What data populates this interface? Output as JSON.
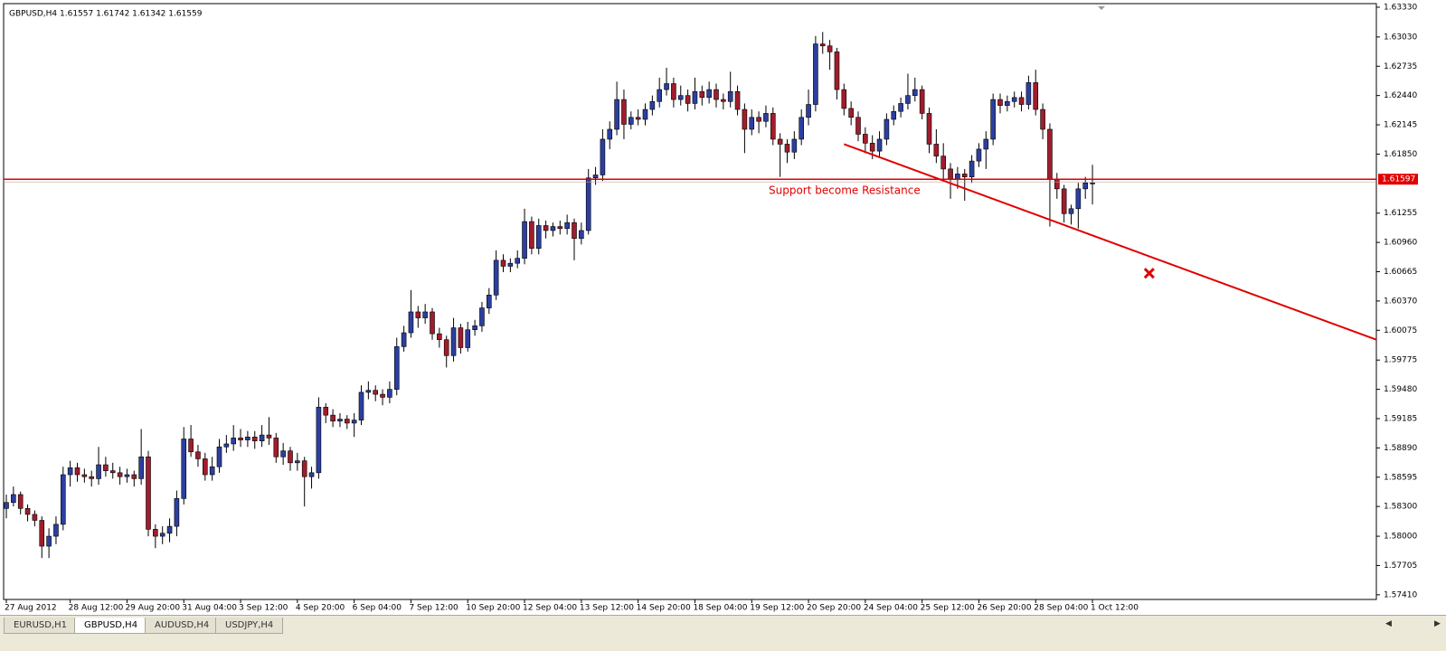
{
  "chart_data": {
    "type": "candlestick",
    "title": "GBPUSD,H4  1.61557 1.61742 1.61342 1.61559",
    "up_color": "#2c3fa0",
    "down_color": "#a11c2c",
    "ylim": [
      1.57363,
      1.63366
    ],
    "yticks": [
      {
        "value": 1.6333,
        "label": "1.63330"
      },
      {
        "value": 1.6303,
        "label": "1.63030"
      },
      {
        "value": 1.62735,
        "label": "1.62735"
      },
      {
        "value": 1.6244,
        "label": "1.62440"
      },
      {
        "value": 1.62145,
        "label": "1.62145"
      },
      {
        "value": 1.6185,
        "label": "1.61850"
      },
      {
        "value": 1.61255,
        "label": "1.61255"
      },
      {
        "value": 1.6096,
        "label": "1.60960"
      },
      {
        "value": 1.60665,
        "label": "1.60665"
      },
      {
        "value": 1.6037,
        "label": "1.60370"
      },
      {
        "value": 1.60075,
        "label": "1.60075"
      },
      {
        "value": 1.59775,
        "label": "1.59775"
      },
      {
        "value": 1.5948,
        "label": "1.59480"
      },
      {
        "value": 1.59185,
        "label": "1.59185"
      },
      {
        "value": 1.5889,
        "label": "1.58890"
      },
      {
        "value": 1.58595,
        "label": "1.58595"
      },
      {
        "value": 1.583,
        "label": "1.58300"
      },
      {
        "value": 1.58,
        "label": "1.58000"
      },
      {
        "value": 1.57705,
        "label": "1.57705"
      },
      {
        "value": 1.5741,
        "label": "1.57410"
      }
    ],
    "hline": {
      "value": 1.61597,
      "label": "1.61597",
      "color": "#e00000"
    },
    "annotation": "Support become Resistance",
    "trendline": {
      "x": [
        118,
        193
      ],
      "y": [
        1.6195,
        1.5998
      ],
      "color": "#e00000"
    },
    "marker": {
      "x": 161,
      "y": 1.6065,
      "color": "#e00000"
    },
    "categories": [
      "27 Aug 2012",
      null,
      null,
      null,
      null,
      null,
      null,
      null,
      null,
      "28 Aug 12:00",
      null,
      null,
      null,
      null,
      null,
      null,
      null,
      "29 Aug 20:00",
      null,
      null,
      null,
      null,
      null,
      null,
      null,
      "31 Aug 04:00",
      null,
      null,
      null,
      null,
      null,
      null,
      null,
      "3 Sep 12:00",
      null,
      null,
      null,
      null,
      null,
      null,
      null,
      "4 Sep 20:00",
      null,
      null,
      null,
      null,
      null,
      null,
      null,
      "6 Sep 04:00",
      null,
      null,
      null,
      null,
      null,
      null,
      null,
      "7 Sep 12:00",
      null,
      null,
      null,
      null,
      null,
      null,
      null,
      "10 Sep 20:00",
      null,
      null,
      null,
      null,
      null,
      null,
      null,
      "12 Sep 04:00",
      null,
      null,
      null,
      null,
      null,
      null,
      null,
      "13 Sep 12:00",
      null,
      null,
      null,
      null,
      null,
      null,
      null,
      "14 Sep 20:00",
      null,
      null,
      null,
      null,
      null,
      null,
      null,
      "18 Sep 04:00",
      null,
      null,
      null,
      null,
      null,
      null,
      null,
      "19 Sep 12:00",
      null,
      null,
      null,
      null,
      null,
      null,
      null,
      "20 Sep 20:00",
      null,
      null,
      null,
      null,
      null,
      null,
      null,
      "24 Sep 04:00",
      null,
      null,
      null,
      null,
      null,
      null,
      null,
      "25 Sep 12:00",
      null,
      null,
      null,
      null,
      null,
      null,
      null,
      "26 Sep 20:00",
      null,
      null,
      null,
      null,
      null,
      null,
      null,
      "28 Sep 04:00",
      null,
      null,
      null,
      null,
      null,
      null,
      null,
      "1 Oct 12:00"
    ],
    "ohlc": [
      [
        1.5828,
        1.5842,
        1.5818,
        1.5834
      ],
      [
        1.5834,
        1.585,
        1.583,
        1.5842
      ],
      [
        1.5842,
        1.5845,
        1.5822,
        1.5828
      ],
      [
        1.5828,
        1.5832,
        1.5815,
        1.5822
      ],
      [
        1.5822,
        1.5826,
        1.581,
        1.5816
      ],
      [
        1.5816,
        1.582,
        1.5778,
        1.579
      ],
      [
        1.579,
        1.5808,
        1.5778,
        1.58
      ],
      [
        1.58,
        1.582,
        1.5792,
        1.5812
      ],
      [
        1.5812,
        1.587,
        1.5806,
        1.5862
      ],
      [
        1.5862,
        1.5876,
        1.585,
        1.5869
      ],
      [
        1.5869,
        1.5874,
        1.5855,
        1.5862
      ],
      [
        1.5862,
        1.5868,
        1.5854,
        1.586
      ],
      [
        1.586,
        1.5866,
        1.585,
        1.5858
      ],
      [
        1.5858,
        1.589,
        1.5852,
        1.5872
      ],
      [
        1.5872,
        1.588,
        1.586,
        1.5866
      ],
      [
        1.5866,
        1.5874,
        1.5858,
        1.5864
      ],
      [
        1.5864,
        1.587,
        1.5852,
        1.586
      ],
      [
        1.586,
        1.5868,
        1.5854,
        1.5862
      ],
      [
        1.5862,
        1.5866,
        1.585,
        1.5858
      ],
      [
        1.5858,
        1.5908,
        1.5852,
        1.588
      ],
      [
        1.588,
        1.5886,
        1.58,
        1.5807
      ],
      [
        1.5807,
        1.5812,
        1.5788,
        1.58
      ],
      [
        1.58,
        1.581,
        1.5792,
        1.5803
      ],
      [
        1.5803,
        1.5818,
        1.5794,
        1.581
      ],
      [
        1.581,
        1.5846,
        1.58,
        1.5838
      ],
      [
        1.5838,
        1.591,
        1.5832,
        1.5898
      ],
      [
        1.5898,
        1.5912,
        1.588,
        1.5885
      ],
      [
        1.5885,
        1.5892,
        1.587,
        1.5878
      ],
      [
        1.5878,
        1.5884,
        1.5856,
        1.5862
      ],
      [
        1.5862,
        1.588,
        1.5856,
        1.587
      ],
      [
        1.587,
        1.5898,
        1.5864,
        1.589
      ],
      [
        1.589,
        1.5902,
        1.5884,
        1.5893
      ],
      [
        1.5893,
        1.5912,
        1.5886,
        1.5899
      ],
      [
        1.5899,
        1.5908,
        1.589,
        1.5897
      ],
      [
        1.5897,
        1.5906,
        1.589,
        1.59
      ],
      [
        1.59,
        1.5906,
        1.5888,
        1.5896
      ],
      [
        1.5896,
        1.5912,
        1.589,
        1.5902
      ],
      [
        1.5902,
        1.592,
        1.5892,
        1.5899
      ],
      [
        1.5899,
        1.5904,
        1.5874,
        1.588
      ],
      [
        1.588,
        1.5894,
        1.5872,
        1.5886
      ],
      [
        1.5886,
        1.589,
        1.5866,
        1.5874
      ],
      [
        1.5874,
        1.5884,
        1.5866,
        1.5876
      ],
      [
        1.5876,
        1.588,
        1.583,
        1.586
      ],
      [
        1.586,
        1.587,
        1.5848,
        1.5864
      ],
      [
        1.5864,
        1.594,
        1.5858,
        1.593
      ],
      [
        1.593,
        1.5934,
        1.5914,
        1.5922
      ],
      [
        1.5922,
        1.5928,
        1.591,
        1.5916
      ],
      [
        1.5916,
        1.5924,
        1.591,
        1.5918
      ],
      [
        1.5918,
        1.5922,
        1.5908,
        1.5914
      ],
      [
        1.5914,
        1.5924,
        1.59,
        1.5917
      ],
      [
        1.5917,
        1.5952,
        1.5912,
        1.5945
      ],
      [
        1.5945,
        1.5956,
        1.5938,
        1.5947
      ],
      [
        1.5947,
        1.5952,
        1.5936,
        1.5943
      ],
      [
        1.5943,
        1.5948,
        1.5932,
        1.594
      ],
      [
        1.594,
        1.5956,
        1.5934,
        1.5948
      ],
      [
        1.5948,
        1.6,
        1.5942,
        1.5991
      ],
      [
        1.5991,
        1.6012,
        1.5986,
        1.6005
      ],
      [
        1.6005,
        1.6048,
        1.6,
        1.6026
      ],
      [
        1.6026,
        1.6032,
        1.601,
        1.602
      ],
      [
        1.602,
        1.6034,
        1.6014,
        1.6026
      ],
      [
        1.6026,
        1.603,
        1.5998,
        1.6004
      ],
      [
        1.6004,
        1.601,
        1.599,
        1.5998
      ],
      [
        1.5998,
        1.6002,
        1.597,
        1.5982
      ],
      [
        1.5982,
        1.602,
        1.5976,
        1.601
      ],
      [
        1.601,
        1.6014,
        1.5984,
        1.599
      ],
      [
        1.599,
        1.6016,
        1.5986,
        1.6008
      ],
      [
        1.6008,
        1.6018,
        1.6002,
        1.6012
      ],
      [
        1.6012,
        1.6036,
        1.6006,
        1.603
      ],
      [
        1.603,
        1.605,
        1.6024,
        1.6043
      ],
      [
        1.6043,
        1.6088,
        1.6038,
        1.6078
      ],
      [
        1.6078,
        1.6084,
        1.6066,
        1.6072
      ],
      [
        1.6072,
        1.608,
        1.6066,
        1.6075
      ],
      [
        1.6075,
        1.6088,
        1.607,
        1.608
      ],
      [
        1.608,
        1.613,
        1.6074,
        1.6117
      ],
      [
        1.6117,
        1.6122,
        1.6084,
        1.609
      ],
      [
        1.609,
        1.612,
        1.6084,
        1.6113
      ],
      [
        1.6113,
        1.6118,
        1.61,
        1.6108
      ],
      [
        1.6108,
        1.6116,
        1.6102,
        1.6112
      ],
      [
        1.6112,
        1.6118,
        1.6104,
        1.611
      ],
      [
        1.611,
        1.6124,
        1.6104,
        1.6116
      ],
      [
        1.6116,
        1.612,
        1.6078,
        1.61
      ],
      [
        1.61,
        1.6116,
        1.6094,
        1.6108
      ],
      [
        1.6108,
        1.617,
        1.6104,
        1.6161
      ],
      [
        1.6161,
        1.6172,
        1.6154,
        1.6164
      ],
      [
        1.6164,
        1.621,
        1.6158,
        1.62
      ],
      [
        1.62,
        1.6218,
        1.619,
        1.621
      ],
      [
        1.621,
        1.6258,
        1.6204,
        1.624
      ],
      [
        1.624,
        1.625,
        1.62,
        1.6215
      ],
      [
        1.6215,
        1.6228,
        1.621,
        1.6222
      ],
      [
        1.6222,
        1.623,
        1.6214,
        1.622
      ],
      [
        1.622,
        1.6236,
        1.6214,
        1.623
      ],
      [
        1.623,
        1.6244,
        1.6224,
        1.6238
      ],
      [
        1.6238,
        1.6262,
        1.6232,
        1.625
      ],
      [
        1.625,
        1.6272,
        1.6244,
        1.6256
      ],
      [
        1.6256,
        1.6262,
        1.6232,
        1.624
      ],
      [
        1.624,
        1.6254,
        1.6234,
        1.6244
      ],
      [
        1.6244,
        1.625,
        1.6228,
        1.6236
      ],
      [
        1.6236,
        1.6262,
        1.623,
        1.6248
      ],
      [
        1.6248,
        1.6254,
        1.6234,
        1.6242
      ],
      [
        1.6242,
        1.6258,
        1.6236,
        1.625
      ],
      [
        1.625,
        1.6256,
        1.6232,
        1.624
      ],
      [
        1.624,
        1.6246,
        1.623,
        1.6238
      ],
      [
        1.6238,
        1.6268,
        1.6232,
        1.6248
      ],
      [
        1.6248,
        1.6254,
        1.6224,
        1.623
      ],
      [
        1.623,
        1.6236,
        1.6186,
        1.621
      ],
      [
        1.621,
        1.623,
        1.6204,
        1.6222
      ],
      [
        1.6222,
        1.6228,
        1.6206,
        1.6218
      ],
      [
        1.6218,
        1.6234,
        1.6212,
        1.6226
      ],
      [
        1.6226,
        1.6232,
        1.6194,
        1.62
      ],
      [
        1.62,
        1.6206,
        1.6162,
        1.6195
      ],
      [
        1.6195,
        1.62,
        1.6176,
        1.6187
      ],
      [
        1.6187,
        1.6208,
        1.618,
        1.62
      ],
      [
        1.62,
        1.623,
        1.6194,
        1.6222
      ],
      [
        1.6222,
        1.625,
        1.6214,
        1.6235
      ],
      [
        1.6235,
        1.6304,
        1.6228,
        1.6296
      ],
      [
        1.6296,
        1.6308,
        1.6286,
        1.6294
      ],
      [
        1.6294,
        1.63,
        1.627,
        1.6288
      ],
      [
        1.6288,
        1.6292,
        1.624,
        1.625
      ],
      [
        1.625,
        1.6256,
        1.6224,
        1.6231
      ],
      [
        1.6231,
        1.6238,
        1.6214,
        1.6222
      ],
      [
        1.6222,
        1.6228,
        1.6198,
        1.6205
      ],
      [
        1.6205,
        1.6212,
        1.6186,
        1.6196
      ],
      [
        1.6196,
        1.6204,
        1.618,
        1.6188
      ],
      [
        1.6188,
        1.6208,
        1.6182,
        1.62
      ],
      [
        1.62,
        1.6226,
        1.6194,
        1.622
      ],
      [
        1.622,
        1.6234,
        1.6214,
        1.6228
      ],
      [
        1.6228,
        1.6242,
        1.6222,
        1.6236
      ],
      [
        1.6236,
        1.6266,
        1.623,
        1.6244
      ],
      [
        1.6244,
        1.6262,
        1.6238,
        1.625
      ],
      [
        1.625,
        1.6254,
        1.622,
        1.6226
      ],
      [
        1.6226,
        1.6232,
        1.6186,
        1.6195
      ],
      [
        1.6195,
        1.621,
        1.6176,
        1.6183
      ],
      [
        1.6183,
        1.6196,
        1.616,
        1.617
      ],
      [
        1.617,
        1.6176,
        1.614,
        1.616
      ],
      [
        1.616,
        1.6172,
        1.615,
        1.6165
      ],
      [
        1.6165,
        1.617,
        1.6138,
        1.6162
      ],
      [
        1.6162,
        1.6184,
        1.6156,
        1.6178
      ],
      [
        1.6178,
        1.6196,
        1.6172,
        1.619
      ],
      [
        1.619,
        1.6208,
        1.617,
        1.62
      ],
      [
        1.62,
        1.6246,
        1.6194,
        1.624
      ],
      [
        1.624,
        1.6246,
        1.6226,
        1.6234
      ],
      [
        1.6234,
        1.6244,
        1.6228,
        1.6238
      ],
      [
        1.6238,
        1.6248,
        1.6232,
        1.6242
      ],
      [
        1.6242,
        1.6248,
        1.6228,
        1.6235
      ],
      [
        1.6235,
        1.6264,
        1.623,
        1.6257
      ],
      [
        1.6257,
        1.627,
        1.6224,
        1.623
      ],
      [
        1.623,
        1.6236,
        1.62,
        1.621
      ],
      [
        1.621,
        1.6216,
        1.6112,
        1.616
      ],
      [
        1.616,
        1.6166,
        1.614,
        1.615
      ],
      [
        1.615,
        1.6154,
        1.6116,
        1.6125
      ],
      [
        1.6125,
        1.6134,
        1.6114,
        1.613
      ],
      [
        1.613,
        1.6156,
        1.611,
        1.615
      ],
      [
        1.615,
        1.6162,
        1.614,
        1.6156
      ],
      [
        1.61557,
        1.61742,
        1.61342,
        1.61559
      ]
    ]
  },
  "tabs": [
    "EURUSD,H1",
    "GBPUSD,H4",
    "AUDUSD,H4",
    "USDJPY,H4"
  ]
}
